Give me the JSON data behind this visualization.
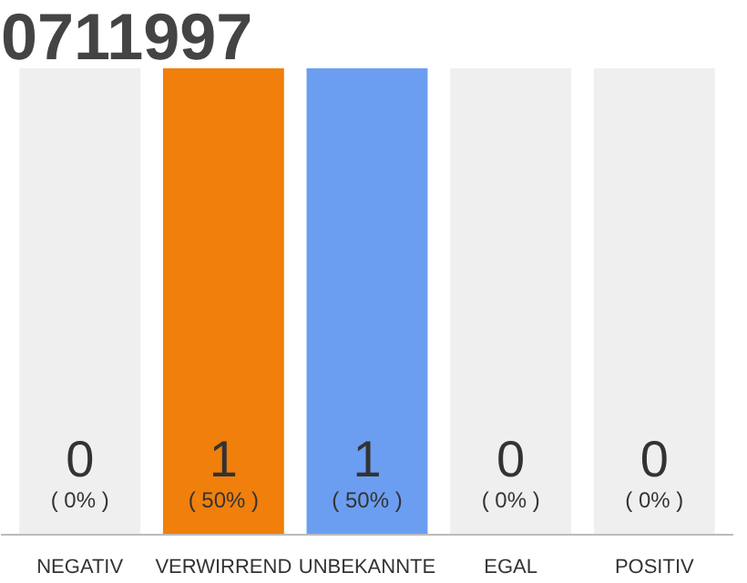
{
  "chart_data": {
    "type": "bar",
    "title": "0711997",
    "categories": [
      "NEGATIV",
      "VERWIRREND",
      "UNBEKANNTE",
      "EGAL",
      "POSITIV"
    ],
    "values": [
      0,
      1,
      1,
      0,
      0
    ],
    "colors": [
      "#efefef",
      "#f07f0b",
      "#6b9ef0",
      "#efefef",
      "#efefef"
    ],
    "data_labels": true,
    "annotations": [
      "( 0% )",
      "( 50% )",
      "( 50% )",
      "( 0% )",
      "( 0% )"
    ],
    "tick_labels": "x",
    "grid": false
  }
}
